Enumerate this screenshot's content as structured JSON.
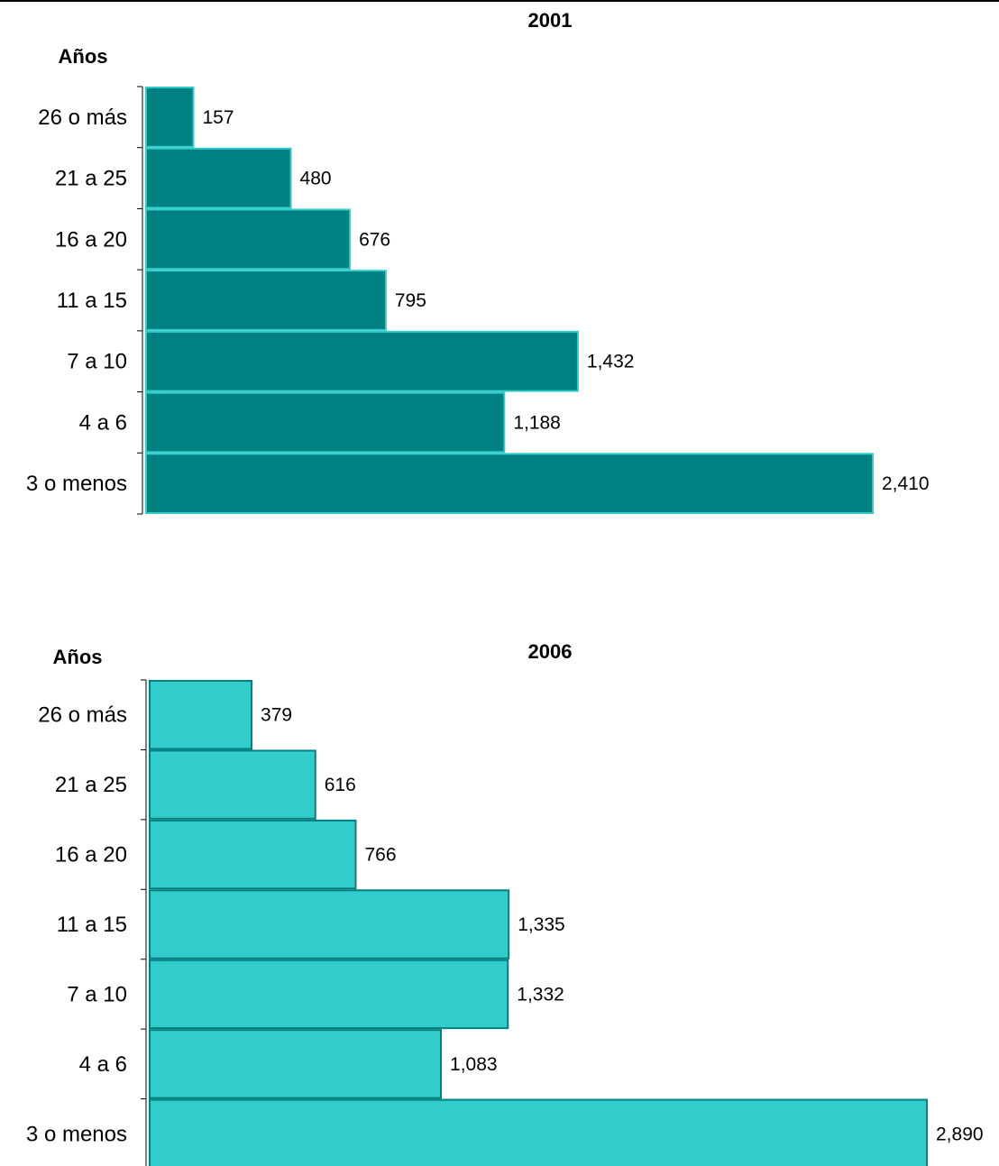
{
  "chart_data": [
    {
      "type": "bar",
      "orientation": "horizontal",
      "title": "2001",
      "ylabel": "Años",
      "categories": [
        "26 o más",
        "21 a 25",
        "16 a 20",
        "11 a 15",
        "7 a 10",
        "4 a 6",
        "3 o menos"
      ],
      "values": [
        157,
        480,
        676,
        795,
        1432,
        1188,
        2410
      ],
      "value_labels": [
        "157",
        "480",
        "676",
        "795",
        "1,432",
        "1,188",
        "2,410"
      ],
      "colors": {
        "fill": "#008080",
        "stroke": "#33cccc"
      }
    },
    {
      "type": "bar",
      "orientation": "horizontal",
      "title": "2006",
      "ylabel": "Años",
      "categories": [
        "26 o más",
        "21 a 25",
        "16 a 20",
        "11 a 15",
        "7 a 10",
        "4 a 6",
        "3 o menos"
      ],
      "values": [
        379,
        616,
        766,
        1335,
        1332,
        1083,
        2890
      ],
      "value_labels": [
        "379",
        "616",
        "766",
        "1,335",
        "1,332",
        "1,083",
        "2,890"
      ],
      "colors": {
        "fill": "#33cccc",
        "stroke": "#008080"
      }
    }
  ]
}
